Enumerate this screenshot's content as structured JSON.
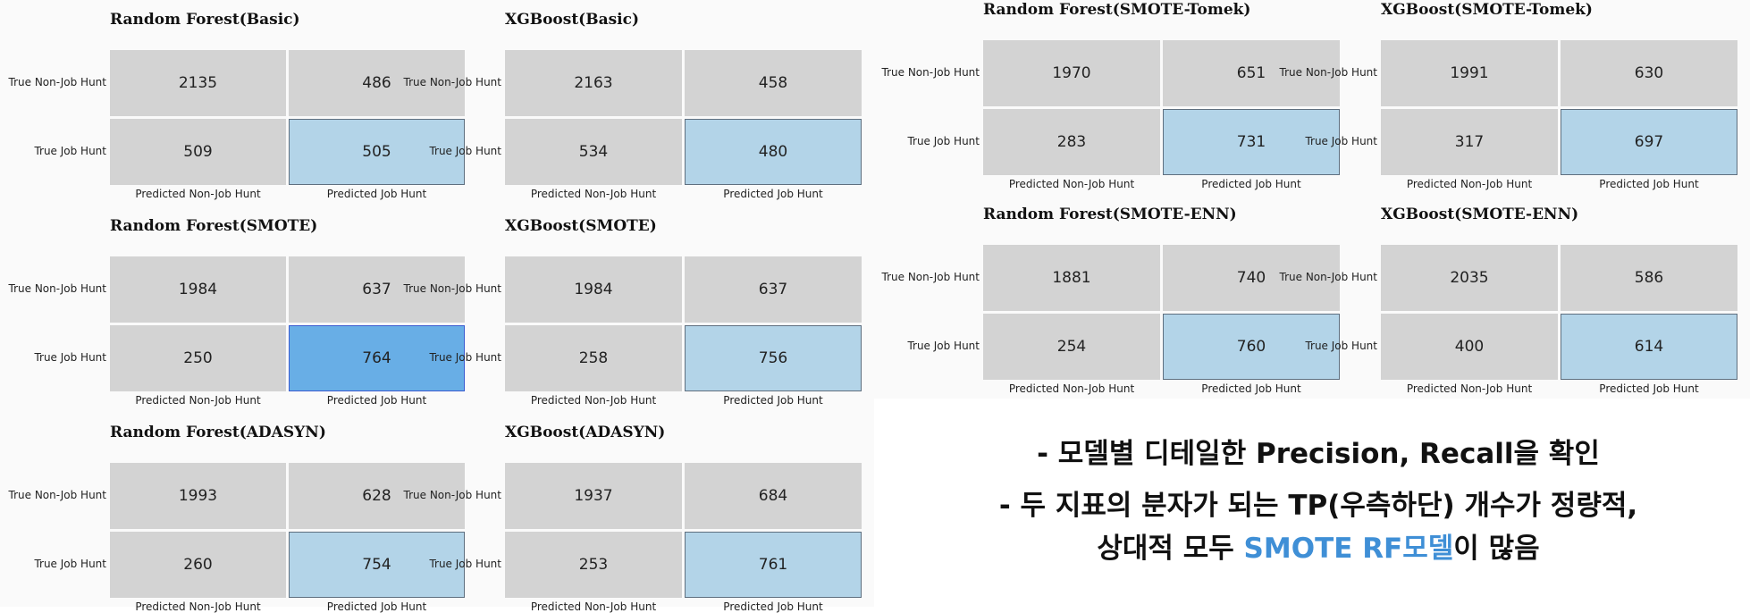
{
  "chart_data": {
    "type": "heatmap",
    "row_labels": [
      "True Non-Job Hunt",
      "True Job Hunt"
    ],
    "col_labels": [
      "Predicted Non-Job Hunt",
      "Predicted Job Hunt"
    ],
    "matrices": [
      {
        "title": "Random Forest(Basic)",
        "values": [
          [
            2135,
            486
          ],
          [
            509,
            505
          ]
        ],
        "highlight": "#b3d4e8"
      },
      {
        "title": "XGBoost(Basic)",
        "values": [
          [
            2163,
            458
          ],
          [
            534,
            480
          ]
        ],
        "highlight": "#b3d4e8"
      },
      {
        "title": "Random Forest(SMOTE)",
        "values": [
          [
            1984,
            637
          ],
          [
            250,
            764
          ]
        ],
        "highlight": "#68aee6"
      },
      {
        "title": "XGBoost(SMOTE)",
        "values": [
          [
            1984,
            637
          ],
          [
            258,
            756
          ]
        ],
        "highlight": "#b3d4e8"
      },
      {
        "title": "Random Forest(ADASYN)",
        "values": [
          [
            1993,
            628
          ],
          [
            260,
            754
          ]
        ],
        "highlight": "#b3d4e8"
      },
      {
        "title": "XGBoost(ADASYN)",
        "values": [
          [
            1937,
            684
          ],
          [
            253,
            761
          ]
        ],
        "highlight": "#b3d4e8"
      },
      {
        "title": "Random Forest(SMOTE-Tomek)",
        "values": [
          [
            1970,
            651
          ],
          [
            283,
            731
          ]
        ],
        "highlight": "#b3d4e8"
      },
      {
        "title": "XGBoost(SMOTE-Tomek)",
        "values": [
          [
            1991,
            630
          ],
          [
            317,
            697
          ]
        ],
        "highlight": "#b3d4e8"
      },
      {
        "title": "Random Forest(SMOTE-ENN)",
        "values": [
          [
            1881,
            740
          ],
          [
            254,
            760
          ]
        ],
        "highlight": "#b3d4e8"
      },
      {
        "title": "XGBoost(SMOTE-ENN)",
        "values": [
          [
            2035,
            586
          ],
          [
            400,
            614
          ]
        ],
        "highlight": "#b3d4e8"
      }
    ]
  },
  "notes": {
    "line1": "- 모델별 디테일한 Precision, Recall을 확인",
    "line2": "- 두 지표의 분자가 되는 TP(우측하단) 개수가 정량적,",
    "line3_pre": "상대적 모두 ",
    "line3_highlight": "SMOTE RF모델",
    "line3_post": "이 많음"
  },
  "colors": {
    "cell_default": "#d3d3d3",
    "tp_cell": "#b3d4e8",
    "best_tp_cell": "#68aee6",
    "highlight_text": "#3f8fd6"
  }
}
